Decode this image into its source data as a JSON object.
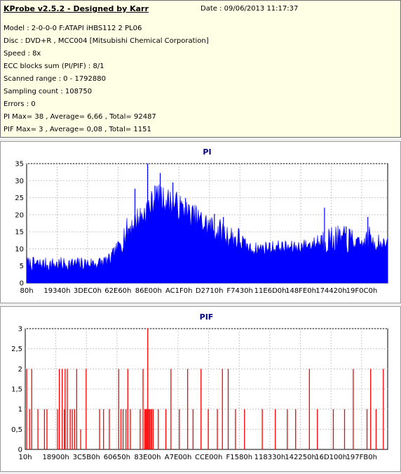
{
  "header": {
    "app_title": "KProbe v2.5.2 - Designed by Karr",
    "date": "Date : 09/06/2013 11:17:37",
    "lines": [
      "Model : 2-0-0-0 F:ATAPI   iHBS112   2     PL06",
      "Disc : DVD+R , MCC004 [Mitsubishi Chemical Corporation]",
      "Speed : 8x",
      "ECC blocks sum (PI/PIF) : 8/1",
      "Scanned range : 0 - 1792880",
      "Sampling count : 108750",
      "Errors : 0",
      "PI Max= 38 , Average= 6,66 , Total= 92487",
      "PIF Max= 3 , Average= 0,08 , Total= 1151"
    ]
  },
  "colors": {
    "pi": "#0000ff",
    "pif": "#ff0000",
    "title": "#000080"
  },
  "chart_data": [
    {
      "type": "area",
      "title": "PI",
      "xlabel": "",
      "ylabel": "",
      "ylim": [
        0,
        38
      ],
      "yticks": [
        "0",
        "5",
        "10",
        "15",
        "20",
        "25",
        "30",
        "35"
      ],
      "xticks": [
        "80h",
        "19340h",
        "3DEC0h",
        "62E60h",
        "86E00h",
        "AC1F0h",
        "D2710h",
        "F7430h",
        "11E6D0h",
        "148FE0h",
        "174420h",
        "19F0C0h"
      ],
      "x_range_hex": [
        "80h",
        "1B5B70h"
      ],
      "grid": true,
      "profile": [
        [
          0,
          5.5
        ],
        [
          5,
          5.2
        ],
        [
          10,
          5.3
        ],
        [
          15,
          5.4
        ],
        [
          20,
          5.6
        ],
        [
          23,
          6.5
        ],
        [
          26,
          12
        ],
        [
          29,
          17
        ],
        [
          32,
          20
        ],
        [
          34,
          23
        ],
        [
          36,
          26
        ],
        [
          38,
          25
        ],
        [
          41,
          24
        ],
        [
          44,
          21
        ],
        [
          47,
          19
        ],
        [
          50,
          17
        ],
        [
          53,
          15
        ],
        [
          57,
          13
        ],
        [
          60,
          12
        ],
        [
          62,
          10
        ],
        [
          66,
          10.5
        ],
        [
          70,
          10.8
        ],
        [
          74,
          10.5
        ],
        [
          78,
          11.5
        ],
        [
          82,
          12.3
        ],
        [
          85,
          12.6
        ],
        [
          88,
          12.3
        ],
        [
          92,
          11.8
        ],
        [
          96,
          12.3
        ],
        [
          100,
          11.5
        ]
      ],
      "spikes": [
        {
          "pos": 33.5,
          "value": 38
        },
        {
          "pos": 37.0,
          "value": 35
        },
        {
          "pos": 30.0,
          "value": 30
        },
        {
          "pos": 40.5,
          "value": 32
        },
        {
          "pos": 35.5,
          "value": 31
        },
        {
          "pos": 44.0,
          "value": 27
        },
        {
          "pos": 47.0,
          "value": 24
        },
        {
          "pos": 52.0,
          "value": 22
        },
        {
          "pos": 54.5,
          "value": 21
        },
        {
          "pos": 82.5,
          "value": 24
        },
        {
          "pos": 94.5,
          "value": 21
        },
        {
          "pos": 88.5,
          "value": 18
        }
      ]
    },
    {
      "type": "bar",
      "title": "PIF",
      "xlabel": "",
      "ylabel": "",
      "ylim": [
        0,
        3
      ],
      "yticks": [
        "0",
        "0,5",
        "1",
        "1,5",
        "2",
        "2,5",
        "3"
      ],
      "xticks": [
        "10h",
        "18900h",
        "3C5B0h",
        "60650h",
        "83E00h",
        "A7E00h",
        "CCE00h",
        "F1580h",
        "118330h",
        "142250h",
        "16D100h",
        "197FB0h"
      ],
      "x_range_hex": [
        "10h",
        "1B5B70h"
      ],
      "grid": true,
      "events": [
        [
          0.4,
          2
        ],
        [
          1.2,
          1
        ],
        [
          1.8,
          2
        ],
        [
          3.5,
          1
        ],
        [
          5.3,
          1
        ],
        [
          6.0,
          1
        ],
        [
          8.9,
          1
        ],
        [
          9.4,
          2
        ],
        [
          10.2,
          2
        ],
        [
          10.8,
          1
        ],
        [
          11.0,
          2
        ],
        [
          11.6,
          2
        ],
        [
          12.4,
          1
        ],
        [
          13.0,
          1
        ],
        [
          13.6,
          1
        ],
        [
          14.2,
          2
        ],
        [
          15.3,
          0.5
        ],
        [
          16.8,
          2
        ],
        [
          20.5,
          1
        ],
        [
          21.6,
          1
        ],
        [
          23.2,
          1
        ],
        [
          25.8,
          2
        ],
        [
          26.4,
          1
        ],
        [
          27.0,
          1
        ],
        [
          27.8,
          1
        ],
        [
          28.3,
          2
        ],
        [
          29.0,
          1
        ],
        [
          31.7,
          1
        ],
        [
          32.5,
          2
        ],
        [
          33.0,
          1
        ],
        [
          33.3,
          1
        ],
        [
          33.5,
          1
        ],
        [
          33.8,
          3
        ],
        [
          34.0,
          1
        ],
        [
          34.3,
          1
        ],
        [
          34.6,
          1
        ],
        [
          34.9,
          1
        ],
        [
          35.3,
          1
        ],
        [
          36.7,
          1
        ],
        [
          38.8,
          1
        ],
        [
          40.2,
          2
        ],
        [
          42.5,
          1
        ],
        [
          44.8,
          2
        ],
        [
          46.3,
          1
        ],
        [
          48.5,
          2
        ],
        [
          50.5,
          1
        ],
        [
          53.0,
          1
        ],
        [
          54.4,
          2
        ],
        [
          56.0,
          2
        ],
        [
          58.0,
          1
        ],
        [
          60.5,
          1
        ],
        [
          65.4,
          1
        ],
        [
          69.0,
          1
        ],
        [
          72.3,
          1
        ],
        [
          74.6,
          1
        ],
        [
          78.4,
          2
        ],
        [
          80.6,
          1
        ],
        [
          85.0,
          1
        ],
        [
          88.1,
          1
        ],
        [
          90.5,
          2
        ],
        [
          94.3,
          1
        ],
        [
          95.3,
          2
        ],
        [
          96.8,
          1
        ],
        [
          98.8,
          2
        ]
      ]
    }
  ]
}
